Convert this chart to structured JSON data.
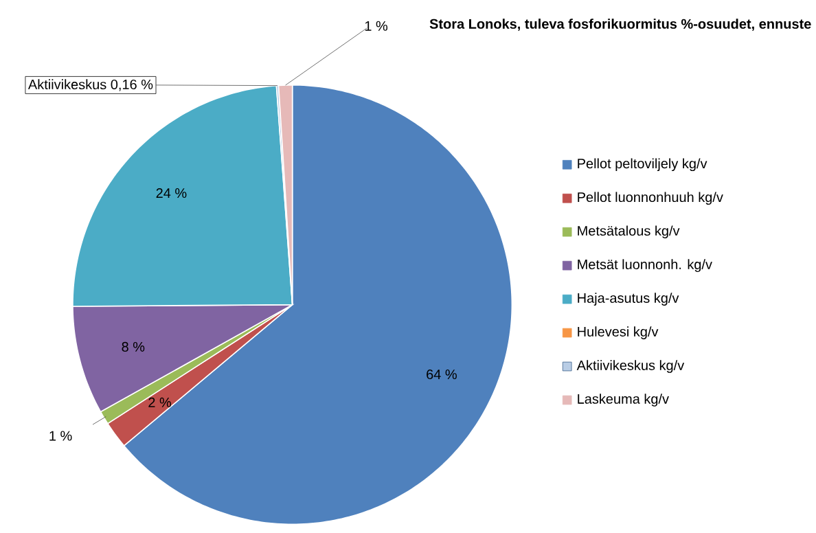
{
  "chart_data": {
    "type": "pie",
    "title": "Stora Lonoks, tuleva fosforikuormitus %-osuudet, ennuste",
    "categories": [
      "Pellot peltoviljely kg/v",
      "Pellot luonnonhuuh kg/v",
      "Metsätalous kg/v",
      "Metsät luonnonh. kg/v",
      "Haja-asutus kg/v",
      "Hulevesi kg/v",
      "Aktiivikeskus kg/v",
      "Laskeuma kg/v"
    ],
    "values": [
      64,
      2,
      1,
      8,
      24,
      0,
      0.16,
      1
    ],
    "colors": [
      "#4f81bd",
      "#c0504d",
      "#9bbb59",
      "#8064a2",
      "#4bacc6",
      "#f79646",
      "#b9cde5",
      "#e6b9b8"
    ],
    "value_labels": [
      "64 %",
      "2 %",
      "1 %",
      "8 %",
      "24 %",
      null,
      "Aktiivikeskus 0,16 %",
      "1 %"
    ],
    "legend": "right"
  }
}
